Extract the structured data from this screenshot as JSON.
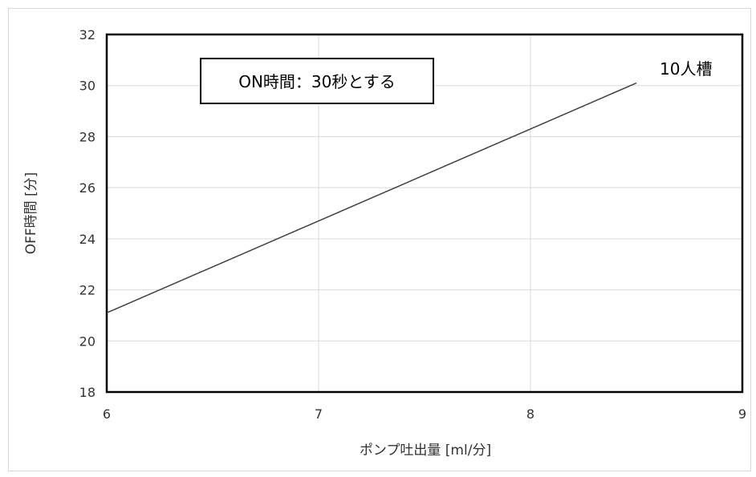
{
  "chart_data": {
    "type": "line",
    "xlabel": "ポンプ吐出量 [ml/分]",
    "ylabel": "OFF時間 [分]",
    "xlim": [
      6,
      9
    ],
    "ylim": [
      18,
      32
    ],
    "x_ticks": [
      6,
      7,
      8,
      9
    ],
    "y_ticks": [
      18,
      20,
      22,
      24,
      26,
      28,
      30,
      32
    ],
    "grid": true,
    "series": [
      {
        "name": "10人槽",
        "x": [
          6,
          8.5
        ],
        "y": [
          21.1,
          30.1
        ],
        "color": "#404040"
      }
    ],
    "annotations": [
      {
        "text": "ON時間：30秒とする",
        "boxed": true
      }
    ]
  }
}
